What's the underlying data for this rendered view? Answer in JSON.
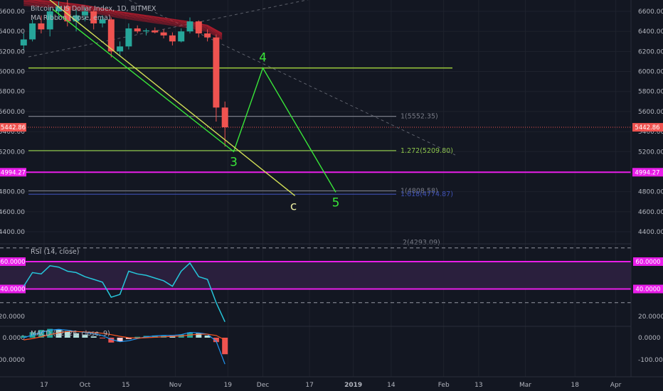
{
  "header": {
    "symbol_title": "Bitcoin / US Dollar Index, 1D, BITMEX",
    "indicator_title": "MA Ribbon (close, ema)"
  },
  "colors": {
    "background": "#131722",
    "grid": "#1e222d",
    "up": "#26a69a",
    "down": "#ef5350",
    "ribbon": "#c41c2e",
    "wave": "#39e639",
    "corrective": "#d4e157",
    "fib_green": "#8bc34a",
    "fib_grey": "#787b86",
    "fib_blue": "#3f51b5",
    "magenta": "#e91ee9",
    "rsi_line": "#26c6da",
    "macd_line": "#2196f3",
    "signal_line": "#ff5722"
  },
  "chart_data": [
    {
      "type": "line",
      "panel": "price",
      "title": "Bitcoin / US Dollar Index, 1D, BITMEX",
      "xlabel": "",
      "ylabel": "",
      "x_ticks": [
        "17",
        "Oct",
        "15",
        "Nov",
        "19",
        "Dec",
        "17",
        "2019",
        "14",
        "Feb",
        "13",
        "Mar",
        "18",
        "Apr"
      ],
      "y_ticks": [
        "6600.00",
        "6400.00",
        "6200.00",
        "6000.00",
        "5800.00",
        "5600.00",
        "5400.00",
        "5200.00",
        "4800.00",
        "4600.00",
        "4400.00"
      ],
      "ylim": [
        4200,
        6700
      ],
      "last_price": "5442.86",
      "support_label": "4994.27",
      "support_value": 4994.27,
      "horizontal_lines": [
        {
          "value": 6035,
          "color": "#9ccc3c"
        },
        {
          "value": 5552.35,
          "color": "#787b86",
          "label": "1(5552.35)"
        },
        {
          "value": 5209.8,
          "color": "#8bc34a",
          "label": "1.272(5209.80)"
        },
        {
          "value": 4808.58,
          "color": "#787b86",
          "label": "1(4808.58)"
        },
        {
          "value": 4774.87,
          "color": "#3f51b5",
          "label": "1.618(4774.87)"
        },
        {
          "value": 4293.09,
          "color": "#787b86",
          "label": "2(4293.09)"
        }
      ],
      "elliott_wave": {
        "points": [
          {
            "label": "",
            "date": "2018-09-20",
            "price": 6620
          },
          {
            "label": "3",
            "date": "2018-11-21",
            "price": 5200
          },
          {
            "label": "4",
            "date": "2018-12-01",
            "price": 6035
          },
          {
            "label": "5",
            "date": "2018-12-26",
            "price": 4795
          }
        ]
      },
      "corrective_line": {
        "label": "c",
        "points": [
          {
            "date": "2018-09-17",
            "price": 6760
          },
          {
            "date": "2018-12-12",
            "price": 4760
          }
        ]
      },
      "candles": [
        {
          "date": "2018-09-10",
          "open": 6260,
          "high": 6380,
          "low": 6210,
          "close": 6320
        },
        {
          "date": "2018-09-13",
          "open": 6320,
          "high": 6520,
          "low": 6300,
          "close": 6480
        },
        {
          "date": "2018-09-16",
          "open": 6480,
          "high": 6560,
          "low": 6380,
          "close": 6420
        },
        {
          "date": "2018-09-19",
          "open": 6420,
          "high": 6640,
          "low": 6350,
          "close": 6600
        },
        {
          "date": "2018-09-22",
          "open": 6600,
          "high": 6700,
          "low": 6520,
          "close": 6650
        },
        {
          "date": "2018-09-25",
          "open": 6650,
          "high": 6720,
          "low": 6450,
          "close": 6500
        },
        {
          "date": "2018-09-28",
          "open": 6500,
          "high": 6620,
          "low": 6400,
          "close": 6560
        },
        {
          "date": "2018-10-01",
          "open": 6560,
          "high": 6640,
          "low": 6500,
          "close": 6600
        },
        {
          "date": "2018-10-04",
          "open": 6600,
          "high": 6620,
          "low": 6420,
          "close": 6480
        },
        {
          "date": "2018-10-07",
          "open": 6480,
          "high": 6560,
          "low": 6440,
          "close": 6520
        },
        {
          "date": "2018-10-10",
          "open": 6520,
          "high": 6540,
          "low": 6140,
          "close": 6200
        },
        {
          "date": "2018-10-13",
          "open": 6200,
          "high": 6300,
          "low": 6150,
          "close": 6250
        },
        {
          "date": "2018-10-16",
          "open": 6250,
          "high": 6480,
          "low": 6220,
          "close": 6430
        },
        {
          "date": "2018-10-19",
          "open": 6430,
          "high": 6460,
          "low": 6380,
          "close": 6400
        },
        {
          "date": "2018-10-22",
          "open": 6400,
          "high": 6430,
          "low": 6360,
          "close": 6410
        },
        {
          "date": "2018-10-25",
          "open": 6410,
          "high": 6440,
          "low": 6380,
          "close": 6390
        },
        {
          "date": "2018-10-28",
          "open": 6390,
          "high": 6420,
          "low": 6330,
          "close": 6360
        },
        {
          "date": "2018-10-31",
          "open": 6360,
          "high": 6390,
          "low": 6260,
          "close": 6300
        },
        {
          "date": "2018-11-03",
          "open": 6300,
          "high": 6430,
          "low": 6290,
          "close": 6400
        },
        {
          "date": "2018-11-06",
          "open": 6400,
          "high": 6540,
          "low": 6380,
          "close": 6500
        },
        {
          "date": "2018-11-09",
          "open": 6500,
          "high": 6510,
          "low": 6340,
          "close": 6380
        },
        {
          "date": "2018-11-12",
          "open": 6380,
          "high": 6420,
          "low": 6300,
          "close": 6340
        },
        {
          "date": "2018-11-15",
          "open": 6340,
          "high": 6370,
          "low": 5500,
          "close": 5640
        },
        {
          "date": "2018-11-18",
          "open": 5640,
          "high": 5700,
          "low": 5250,
          "close": 5443
        }
      ],
      "ma_ribbon": {
        "dates": [
          "2018-09-10",
          "2018-09-20",
          "2018-10-01",
          "2018-10-12",
          "2018-10-24",
          "2018-11-05",
          "2018-11-12",
          "2018-11-17"
        ],
        "values": [
          6720,
          6700,
          6660,
          6600,
          6550,
          6500,
          6460,
          6380
        ]
      }
    },
    {
      "type": "line",
      "panel": "rsi",
      "title": "RSI (14, close)",
      "ylim": [
        10,
        70
      ],
      "y_ticks": [
        "60.0000",
        "40.0000",
        "20.0000"
      ],
      "bands": [
        60,
        40
      ],
      "dashed_levels": [
        70,
        30
      ],
      "series": [
        {
          "dates": [
            "2018-09-10",
            "2018-09-13",
            "2018-09-16",
            "2018-09-19",
            "2018-09-22",
            "2018-09-25",
            "2018-09-28",
            "2018-10-01",
            "2018-10-04",
            "2018-10-07",
            "2018-10-10",
            "2018-10-13",
            "2018-10-16",
            "2018-10-19",
            "2018-10-22",
            "2018-10-25",
            "2018-10-28",
            "2018-10-31",
            "2018-11-03",
            "2018-11-06",
            "2018-11-09",
            "2018-11-12",
            "2018-11-15",
            "2018-11-18"
          ],
          "values": [
            42,
            52,
            51,
            57,
            56,
            53,
            52,
            49,
            47,
            45,
            34,
            36,
            53,
            51,
            50,
            48,
            46,
            42,
            53,
            59,
            49,
            47,
            30,
            16
          ]
        }
      ]
    },
    {
      "type": "bar",
      "panel": "macd",
      "title": "MACD (12, 26, close, 9)",
      "ylim": [
        -150,
        60
      ],
      "y_ticks": [
        "0.0000",
        "-100.0000"
      ],
      "histogram": [
        8,
        25,
        35,
        40,
        38,
        30,
        20,
        14,
        6,
        -2,
        -22,
        -18,
        -6,
        4,
        8,
        10,
        10,
        8,
        14,
        24,
        20,
        10,
        -20,
        -75
      ],
      "macd": [
        0,
        12,
        24,
        34,
        38,
        34,
        28,
        24,
        18,
        10,
        -8,
        -18,
        -14,
        -4,
        4,
        8,
        10,
        10,
        14,
        24,
        22,
        16,
        -16,
        -120
      ],
      "signal": [
        -10,
        -4,
        4,
        14,
        22,
        28,
        28,
        26,
        24,
        20,
        14,
        6,
        0,
        -2,
        0,
        2,
        4,
        6,
        8,
        12,
        16,
        16,
        10,
        -10
      ]
    }
  ]
}
